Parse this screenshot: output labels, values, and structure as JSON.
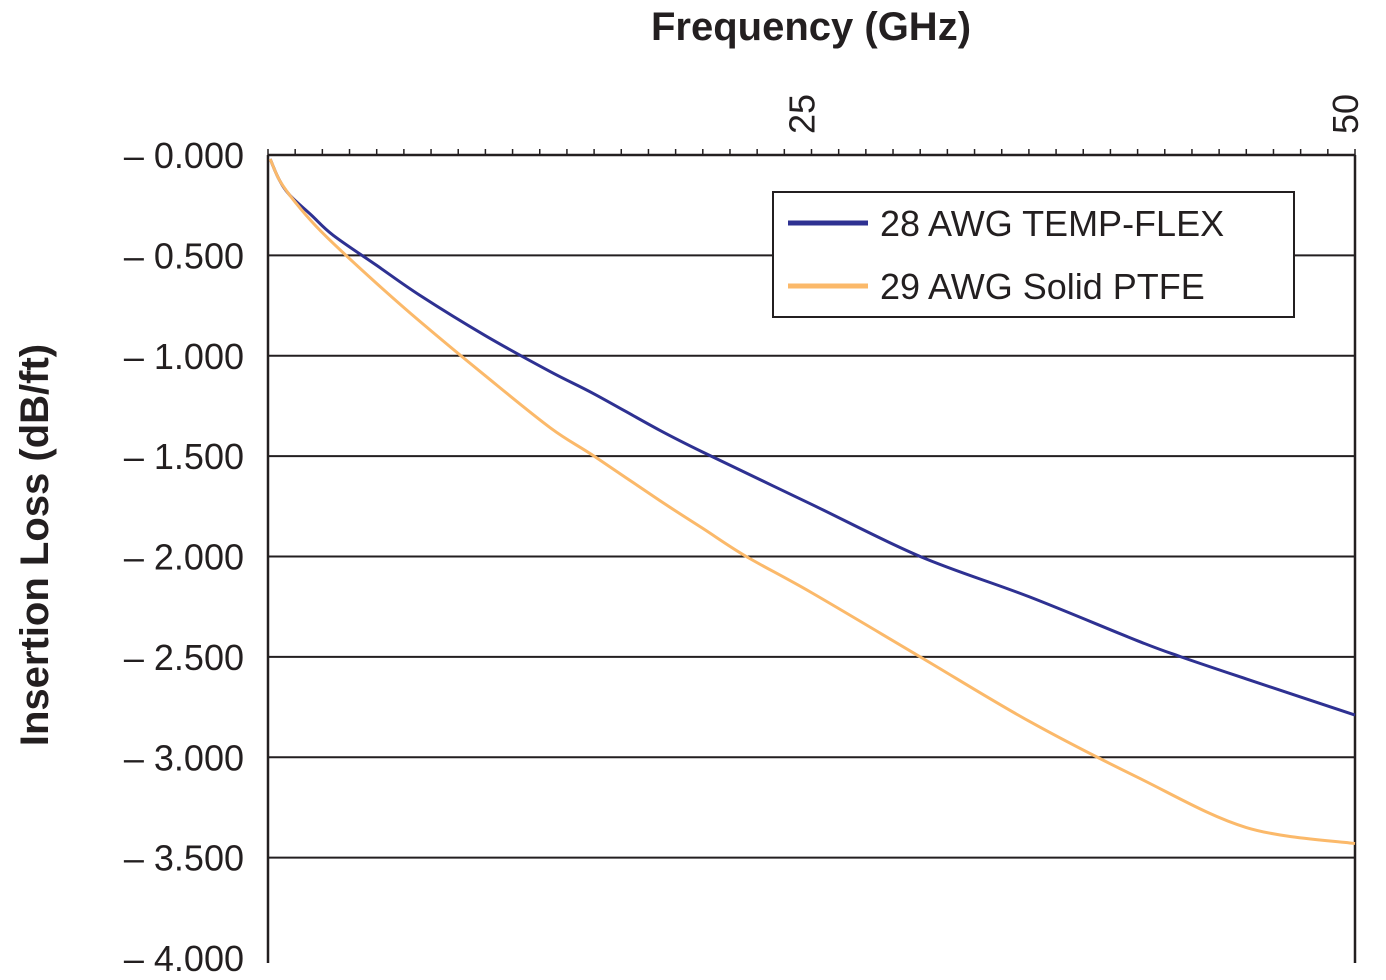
{
  "chart_data": {
    "type": "line",
    "title": "",
    "xlabel": "Frequency (GHz)",
    "ylabel": "Insertion Loss (dB/ft)",
    "x_axis_position": "top",
    "xlim": [
      0,
      50
    ],
    "ylim": [
      -4.0,
      0.0
    ],
    "x_ticks": [
      {
        "value": 25,
        "label": "25"
      },
      {
        "value": 50,
        "label": "50"
      }
    ],
    "y_ticks": [
      {
        "value": 0.0,
        "label": "– 0.000"
      },
      {
        "value": -0.5,
        "label": "– 0.500"
      },
      {
        "value": -1.0,
        "label": "– 1.000"
      },
      {
        "value": -1.5,
        "label": "– 1.500"
      },
      {
        "value": -2.0,
        "label": "– 2.000"
      },
      {
        "value": -2.5,
        "label": "– 2.500"
      },
      {
        "value": -3.0,
        "label": "– 3.000"
      },
      {
        "value": -3.5,
        "label": "– 3.500"
      },
      {
        "value": -4.0,
        "label": "– 4.000"
      }
    ],
    "grid": "horizontal",
    "legend_position": "top-right",
    "series": [
      {
        "name": "28 AWG TEMP-FLEX",
        "color": "#2e3192",
        "x": [
          0.1,
          0.5,
          1,
          2,
          3,
          5,
          7,
          10,
          13,
          15,
          18,
          20,
          25,
          30,
          35,
          40,
          42,
          45,
          50
        ],
        "y": [
          -0.02,
          -0.12,
          -0.2,
          -0.3,
          -0.4,
          -0.55,
          -0.7,
          -0.9,
          -1.08,
          -1.19,
          -1.37,
          -1.48,
          -1.74,
          -2.0,
          -2.2,
          -2.42,
          -2.5,
          -2.61,
          -2.79
        ]
      },
      {
        "name": "29 AWG Solid PTFE",
        "color": "#fbb96a",
        "x": [
          0.1,
          0.5,
          1,
          2,
          3,
          5,
          7,
          10,
          13,
          15,
          18,
          20,
          22,
          25,
          30,
          35,
          40,
          45,
          50
        ],
        "y": [
          -0.02,
          -0.12,
          -0.2,
          -0.33,
          -0.44,
          -0.64,
          -0.83,
          -1.1,
          -1.36,
          -1.5,
          -1.72,
          -1.86,
          -2.0,
          -2.18,
          -2.5,
          -2.82,
          -3.1,
          -3.35,
          -3.43
        ]
      }
    ]
  }
}
